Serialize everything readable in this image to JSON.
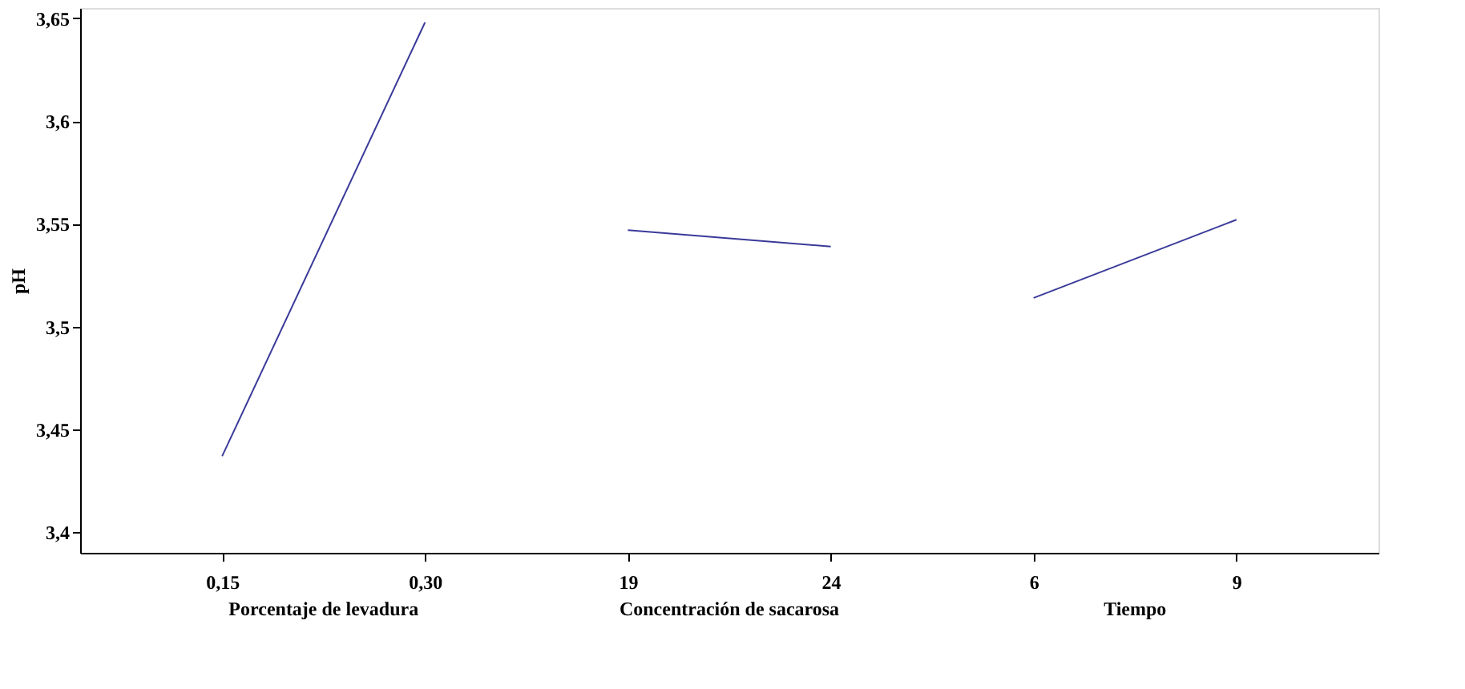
{
  "chart_data": {
    "type": "line",
    "ylabel": "pH",
    "categories": [
      "0,15",
      "0,30",
      "19",
      "24",
      "6",
      "9"
    ],
    "series": [
      {
        "color": "#3a3a9a",
        "values": [
          3.437,
          3.648,
          null,
          null,
          null,
          null
        ]
      },
      {
        "color": "#3a3a9a",
        "values": [
          null,
          null,
          3.547,
          3.539,
          null,
          null
        ]
      },
      {
        "color": "#3a3a9a",
        "values": [
          null,
          null,
          null,
          null,
          3.514,
          3.552
        ]
      }
    ],
    "ylim": [
      3.39,
      3.655
    ],
    "yticks": [
      {
        "value": 3.4,
        "label": "3,4"
      },
      {
        "value": 3.45,
        "label": "3,45"
      },
      {
        "value": 3.5,
        "label": "3,5"
      },
      {
        "value": 3.55,
        "label": "3,55"
      },
      {
        "value": 3.6,
        "label": "3,6"
      },
      {
        "value": 3.65,
        "label": "3,65"
      }
    ],
    "annotations": [
      "Porcentaje de levadura",
      "Concentración de sacarosa",
      "Tiempo"
    ],
    "grid": false,
    "marker": "none",
    "line_style": "solid"
  }
}
